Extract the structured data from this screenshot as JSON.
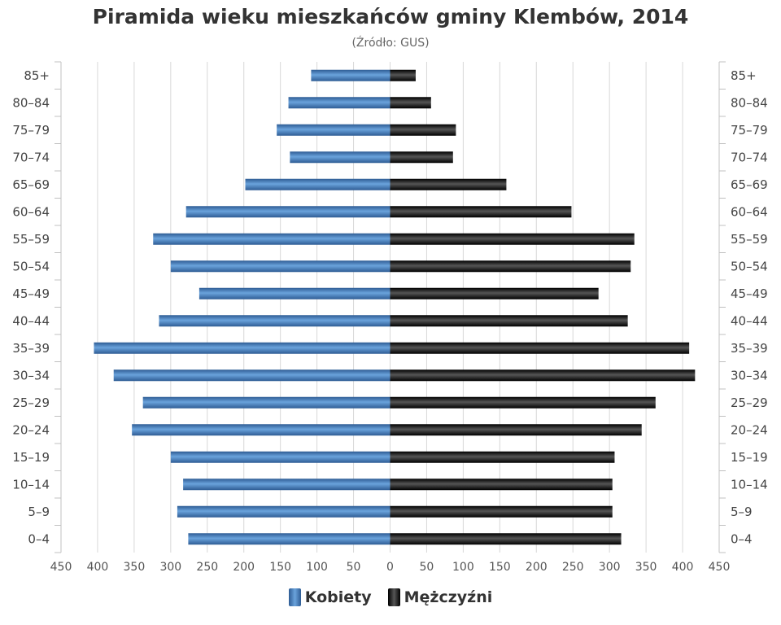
{
  "header": {
    "title": "Piramida wieku mieszkańców gminy Klembów, 2014",
    "subtitle": "(Źródło: GUS)"
  },
  "colors": {
    "women_dark": "#2e5c94",
    "women_light": "#6aa3dc",
    "men_dark": "#000000",
    "men_light": "#555555",
    "grid": "#d8d8d8",
    "axis": "#c0c0c0"
  },
  "legend": {
    "women_label": "Kobiety",
    "men_label": "Mężczyźni"
  },
  "chart_data": {
    "type": "bar",
    "orientation": "horizontal",
    "layout": "population-pyramid",
    "title": "Piramida wieku mieszkańców gminy Klembów, 2014",
    "subtitle": "(Źródło: GUS)",
    "categories": [
      "85+",
      "80–84",
      "75–79",
      "70–74",
      "65–69",
      "60–64",
      "55–59",
      "50–54",
      "45–49",
      "40–44",
      "35–39",
      "30–34",
      "25–29",
      "20–24",
      "15–19",
      "10–14",
      "5–9",
      "0–4"
    ],
    "series": [
      {
        "name": "Kobiety",
        "side": "left",
        "values": [
          108,
          139,
          155,
          137,
          198,
          279,
          324,
          300,
          261,
          316,
          405,
          378,
          338,
          353,
          300,
          283,
          291,
          276
        ]
      },
      {
        "name": "Mężczyźni",
        "side": "right",
        "values": [
          35,
          56,
          90,
          86,
          159,
          248,
          334,
          329,
          285,
          325,
          409,
          417,
          363,
          344,
          307,
          304,
          304,
          316
        ]
      }
    ],
    "xlim": [
      -450,
      450
    ],
    "xticks": [
      -450,
      -400,
      -350,
      -300,
      -250,
      -200,
      -150,
      -100,
      -50,
      0,
      50,
      100,
      150,
      200,
      250,
      300,
      350,
      400,
      450
    ],
    "xtick_labels": [
      "450",
      "400",
      "350",
      "300",
      "250",
      "200",
      "150",
      "100",
      "50",
      "0",
      "50",
      "100",
      "150",
      "200",
      "250",
      "300",
      "350",
      "400",
      "450"
    ],
    "xlabel": "",
    "ylabel": "",
    "grid": "vertical",
    "legend": "bottom-center"
  }
}
